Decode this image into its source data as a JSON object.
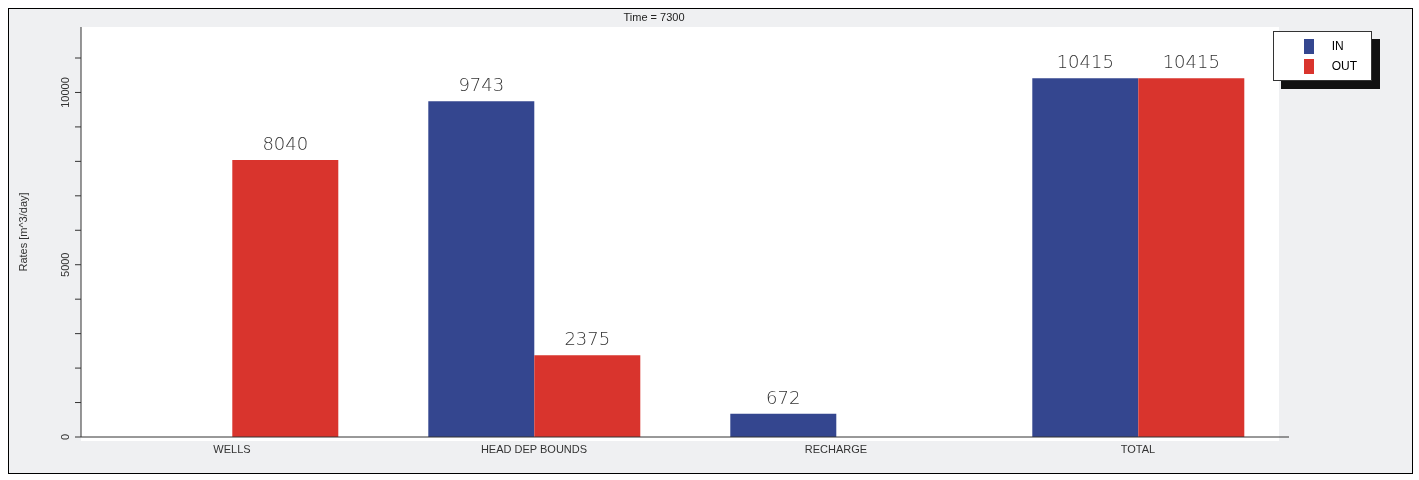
{
  "chart_data": {
    "type": "bar",
    "title": "Time = 7300",
    "ylabel": "Rates [m^3/day]",
    "categories": [
      "WELLS",
      "HEAD DEP BOUNDS",
      "RECHARGE",
      "TOTAL"
    ],
    "series": [
      {
        "name": "IN",
        "color": "#34468f",
        "values": [
          null,
          9743,
          672,
          10415
        ]
      },
      {
        "name": "OUT",
        "color": "#d9342d",
        "values": [
          8040,
          2375,
          null,
          10415
        ]
      }
    ],
    "data_labels": true,
    "ylim": [
      0,
      11900
    ],
    "yticks": [
      0,
      {
        "value": 1000,
        "label": null
      },
      {
        "value": 2000,
        "label": null
      },
      {
        "value": 3000,
        "label": null
      },
      {
        "value": 4000,
        "label": null
      },
      5000,
      {
        "value": 6000,
        "label": null
      },
      {
        "value": 7000,
        "label": null
      },
      {
        "value": 8000,
        "label": null
      },
      {
        "value": 9000,
        "label": null
      },
      10000,
      {
        "value": 11000,
        "label": null
      }
    ],
    "grid": false,
    "legend": "top right"
  }
}
